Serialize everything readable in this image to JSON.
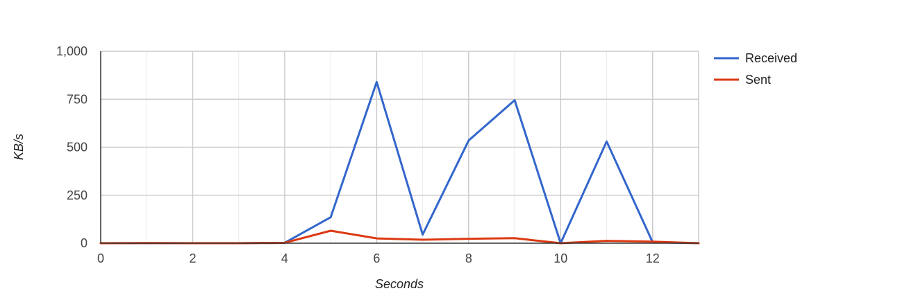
{
  "chart_data": {
    "type": "line",
    "title": "",
    "xlabel": "Seconds",
    "ylabel": "KB/s",
    "x": [
      0,
      1,
      2,
      3,
      4,
      5,
      6,
      7,
      8,
      9,
      10,
      11,
      12,
      13
    ],
    "xlim": [
      0,
      13
    ],
    "ylim": [
      0,
      1000
    ],
    "x_ticks": [
      0,
      2,
      4,
      6,
      8,
      10,
      12
    ],
    "x_tick_labels": [
      "0",
      "2",
      "4",
      "6",
      "8",
      "10",
      "12"
    ],
    "y_ticks": [
      0,
      250,
      500,
      750,
      1000
    ],
    "y_tick_labels": [
      "0",
      "250",
      "500",
      "750",
      "1,000"
    ],
    "grid": true,
    "legend_position": "right",
    "series": [
      {
        "name": "Received",
        "color": "#3366cc",
        "values": [
          0,
          0,
          0,
          0,
          2,
          135,
          840,
          45,
          535,
          745,
          0,
          530,
          5,
          0
        ]
      },
      {
        "name": "Sent",
        "color": "#dc3912",
        "values": [
          0,
          1,
          0,
          0,
          2,
          65,
          25,
          18,
          23,
          26,
          0,
          12,
          8,
          0
        ]
      }
    ]
  }
}
